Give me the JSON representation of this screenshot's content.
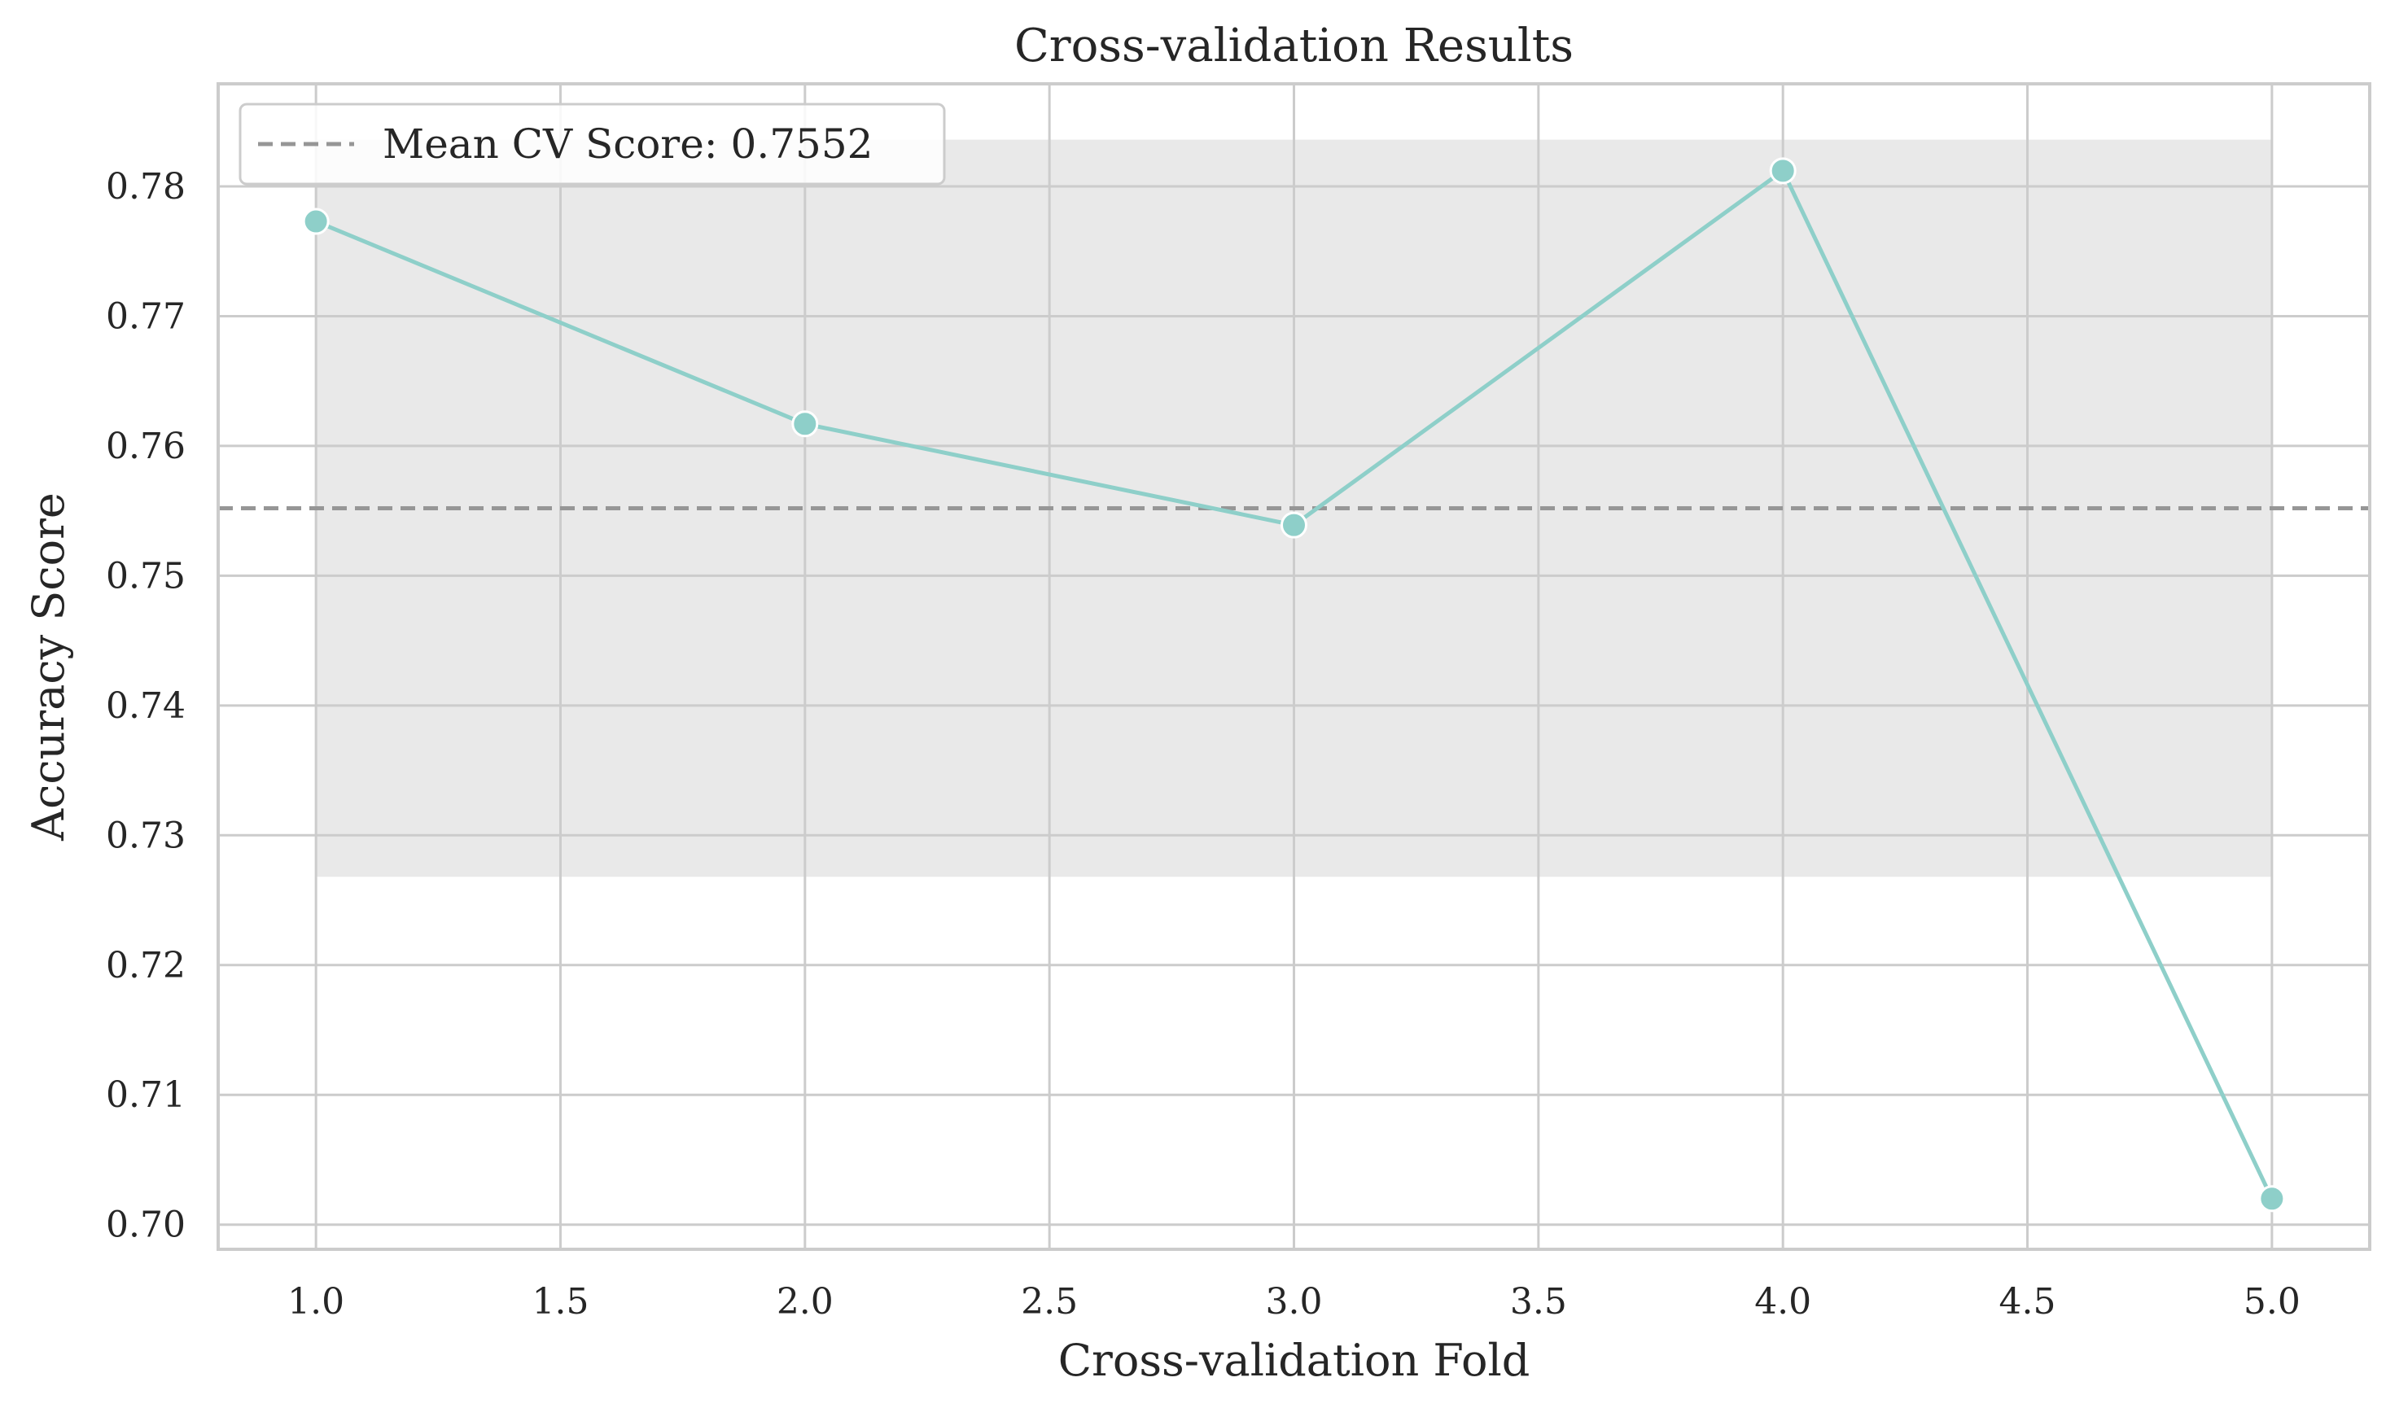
{
  "chart_data": {
    "type": "line",
    "title": "Cross-validation Results",
    "xlabel": "Cross-validation Fold",
    "ylabel": "Accuracy Score",
    "xlim": [
      0.8,
      5.2
    ],
    "ylim": [
      0.6981,
      0.7879
    ],
    "x_ticks": [
      1.0,
      1.5,
      2.0,
      2.5,
      3.0,
      3.5,
      4.0,
      4.5,
      5.0
    ],
    "x_tick_labels": [
      "1.0",
      "1.5",
      "2.0",
      "2.5",
      "3.0",
      "3.5",
      "4.0",
      "4.5",
      "5.0"
    ],
    "y_ticks": [
      0.7,
      0.71,
      0.72,
      0.73,
      0.74,
      0.75,
      0.76,
      0.77,
      0.78
    ],
    "y_tick_labels": [
      "0.70",
      "0.71",
      "0.72",
      "0.73",
      "0.74",
      "0.75",
      "0.76",
      "0.77",
      "0.78"
    ],
    "grid": true,
    "series": [
      {
        "x": [
          1,
          2,
          3,
          4,
          5
        ],
        "values": [
          0.7773,
          0.7617,
          0.7539,
          0.7812,
          0.702
        ],
        "color": "#8ecfc9",
        "marker": "circle"
      }
    ],
    "mean_line": {
      "value": 0.7552,
      "label": "Mean CV Score: 0.7552",
      "color": "#969696",
      "style": "dashed"
    },
    "std_band": {
      "x_range": [
        1,
        5
      ],
      "y_range": [
        0.7268,
        0.7836
      ],
      "color": "#c8c8c8"
    },
    "legend": {
      "position": "top-left"
    }
  }
}
